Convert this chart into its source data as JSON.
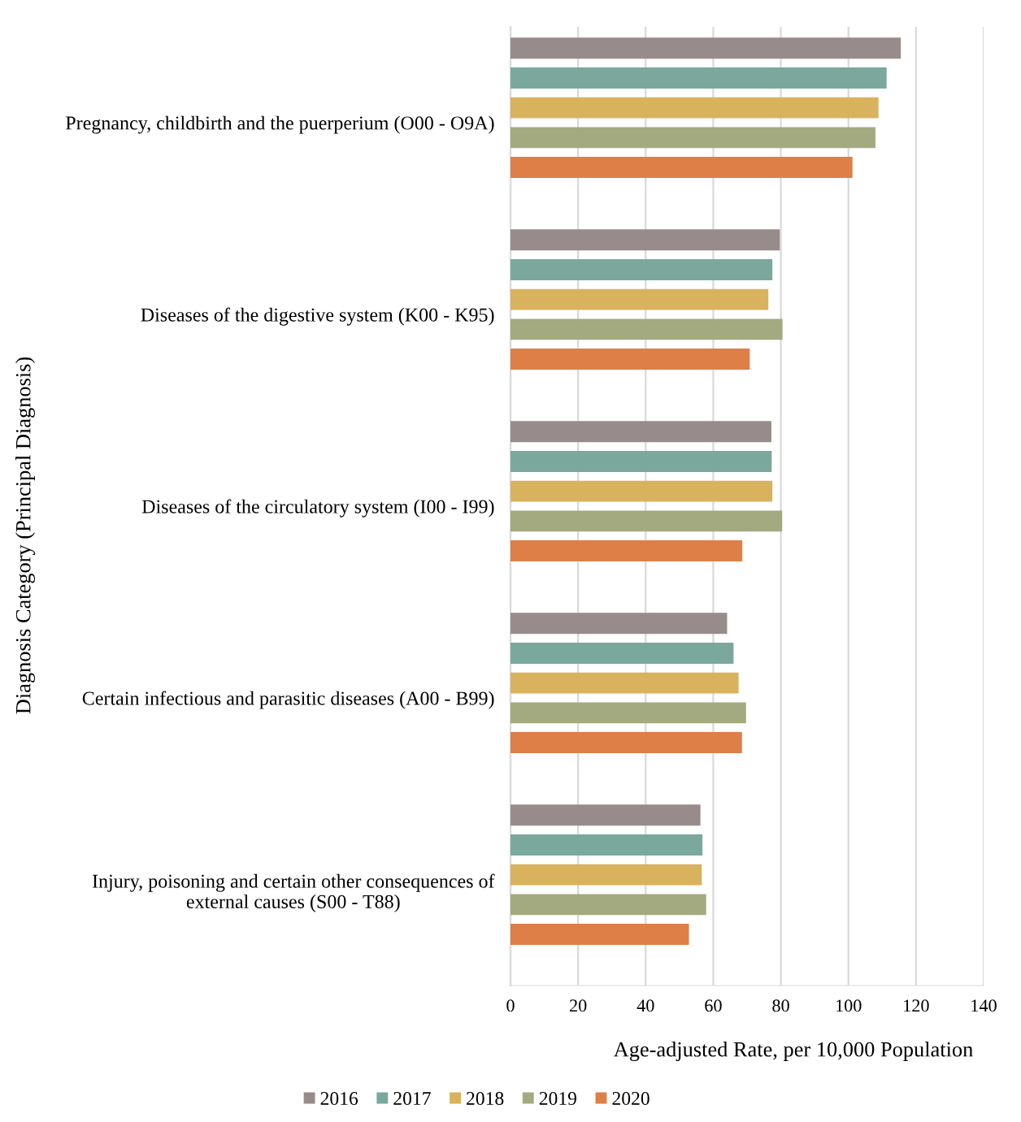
{
  "chart_data": {
    "type": "bar",
    "orientation": "horizontal",
    "categories": [
      "Pregnancy, childbirth and the puerperium (O00 - O9A)",
      "Diseases of the digestive system (K00 - K95)",
      "Diseases of the circulatory system (I00 - I99)",
      "Certain infectious and parasitic diseases (A00 - B99)",
      "Injury, poisoning and certain other consequences of\nexternal causes (S00 - T88)"
    ],
    "series": [
      {
        "name": "2016",
        "color": "#978c8a",
        "values": [
          115.5,
          79.7,
          77.2,
          64.1,
          56.2
        ]
      },
      {
        "name": "2017",
        "color": "#7aa89c",
        "values": [
          111.3,
          77.5,
          77.3,
          66.0,
          56.8
        ]
      },
      {
        "name": "2018",
        "color": "#d9b25e",
        "values": [
          108.9,
          76.3,
          77.5,
          67.5,
          56.6
        ]
      },
      {
        "name": "2019",
        "color": "#a4aa80",
        "values": [
          108.0,
          80.5,
          80.4,
          69.7,
          57.9
        ]
      },
      {
        "name": "2020",
        "color": "#de7f47",
        "values": [
          101.2,
          70.8,
          68.6,
          68.5,
          52.8
        ]
      }
    ],
    "xlim": [
      0,
      140
    ],
    "xticks": [
      0,
      20,
      40,
      60,
      80,
      100,
      120,
      140
    ],
    "xlabel": "Age-adjusted Rate, per 10,000 Population",
    "ylabel": "Diagnosis Category (Principal Diagnosis)",
    "grid": "x",
    "legend": "bottom"
  }
}
